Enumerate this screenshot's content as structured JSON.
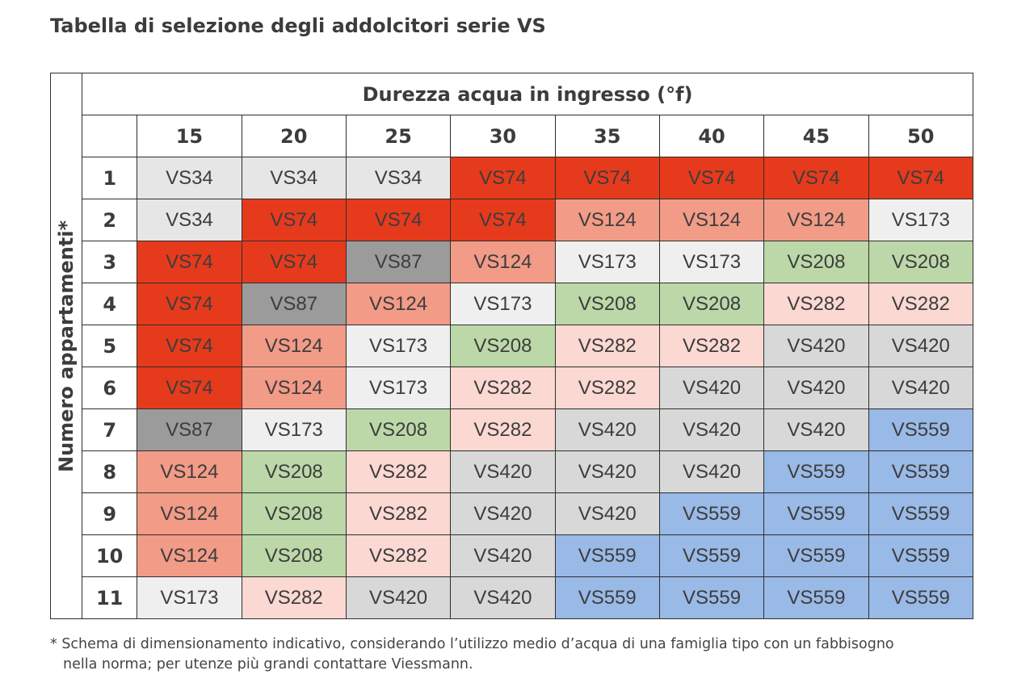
{
  "title": "Tabella di selezione degli addolcitori serie VS",
  "table": {
    "column_group_label": "Durezza acqua in ingresso (°f)",
    "row_axis_label": "Numero appartamenti*",
    "columns": [
      "15",
      "20",
      "25",
      "30",
      "35",
      "40",
      "45",
      "50"
    ],
    "rows": [
      {
        "label": "1",
        "cells": [
          "VS34",
          "VS34",
          "VS34",
          "VS74",
          "VS74",
          "VS74",
          "VS74",
          "VS74"
        ]
      },
      {
        "label": "2",
        "cells": [
          "VS34",
          "VS74",
          "VS74",
          "VS74",
          "VS124",
          "VS124",
          "VS124",
          "VS173"
        ]
      },
      {
        "label": "3",
        "cells": [
          "VS74",
          "VS74",
          "VS87",
          "VS124",
          "VS173",
          "VS173",
          "VS208",
          "VS208"
        ]
      },
      {
        "label": "4",
        "cells": [
          "VS74",
          "VS87",
          "VS124",
          "VS173",
          "VS208",
          "VS208",
          "VS282",
          "VS282"
        ]
      },
      {
        "label": "5",
        "cells": [
          "VS74",
          "VS124",
          "VS173",
          "VS208",
          "VS282",
          "VS282",
          "VS420",
          "VS420"
        ]
      },
      {
        "label": "6",
        "cells": [
          "VS74",
          "VS124",
          "VS173",
          "VS282",
          "VS282",
          "VS420",
          "VS420",
          "VS420"
        ]
      },
      {
        "label": "7",
        "cells": [
          "VS87",
          "VS173",
          "VS208",
          "VS282",
          "VS420",
          "VS420",
          "VS420",
          "VS559"
        ]
      },
      {
        "label": "8",
        "cells": [
          "VS124",
          "VS208",
          "VS282",
          "VS420",
          "VS420",
          "VS420",
          "VS559",
          "VS559"
        ]
      },
      {
        "label": "9",
        "cells": [
          "VS124",
          "VS208",
          "VS282",
          "VS420",
          "VS420",
          "VS559",
          "VS559",
          "VS559"
        ]
      },
      {
        "label": "10",
        "cells": [
          "VS124",
          "VS208",
          "VS282",
          "VS420",
          "VS559",
          "VS559",
          "VS559",
          "VS559"
        ]
      },
      {
        "label": "11",
        "cells": [
          "VS173",
          "VS282",
          "VS420",
          "VS420",
          "VS559",
          "VS559",
          "VS559",
          "VS559"
        ]
      }
    ]
  },
  "model_colors": {
    "VS34": "#e6e6e6",
    "VS74": "#e63a1c",
    "VS87": "#9b9b9b",
    "VS124": "#f29b87",
    "VS173": "#efefef",
    "VS208": "#bcd8a8",
    "VS282": "#fcd8d2",
    "VS420": "#d8d8d8",
    "VS559": "#99b9e6"
  },
  "footnote": {
    "line1": "* Schema di dimensionamento indicativo, considerando l’utilizzo medio d’acqua di una famiglia tipo con un fabbisogno",
    "line2": "nella norma; per utenze più grandi contattare Viessmann."
  }
}
